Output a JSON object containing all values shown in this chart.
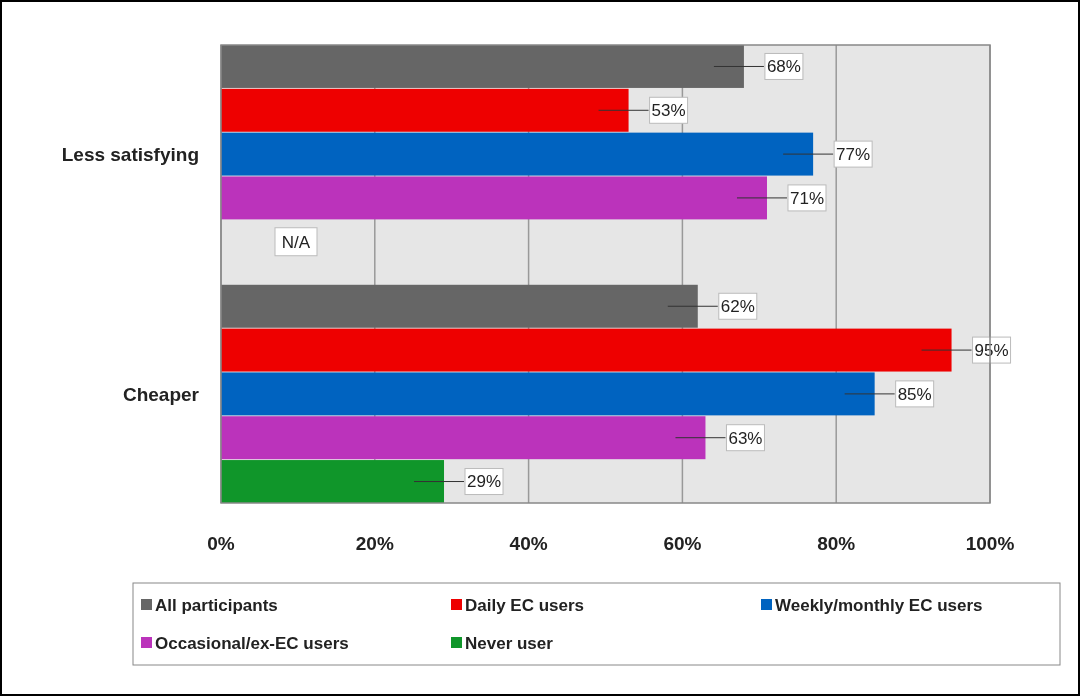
{
  "chart_data": {
    "type": "bar",
    "orientation": "horizontal",
    "categories": [
      "Less satisfying",
      "Cheaper"
    ],
    "series": [
      {
        "name": "All participants",
        "color": "#666666",
        "values": [
          68,
          62
        ],
        "value_labels": [
          "68%",
          "62%"
        ]
      },
      {
        "name": "Daily EC users",
        "color": "#ee0000",
        "values": [
          53,
          95
        ],
        "value_labels": [
          "53%",
          "95%"
        ]
      },
      {
        "name": "Weekly/monthly EC users",
        "color": "#0063c0",
        "values": [
          77,
          85
        ],
        "value_labels": [
          "77%",
          "85%"
        ]
      },
      {
        "name": "Occasional/ex-EC users",
        "color": "#bb33bb",
        "values": [
          71,
          63
        ],
        "value_labels": [
          "71%",
          "63%"
        ]
      },
      {
        "name": "Never user",
        "color": "#10962a",
        "values": [
          null,
          29
        ],
        "value_labels": [
          null,
          "29%"
        ]
      }
    ],
    "xlim": [
      0,
      100
    ],
    "xticks": [
      {
        "value": 0,
        "label": "0%"
      },
      {
        "value": 20,
        "label": "20%"
      },
      {
        "value": 40,
        "label": "40%"
      },
      {
        "value": 60,
        "label": "60%"
      },
      {
        "value": 80,
        "label": "80%"
      },
      {
        "value": 100,
        "label": "100%"
      }
    ],
    "grid": "x",
    "legend": "bottom",
    "annotations": [
      "N/A"
    ]
  }
}
